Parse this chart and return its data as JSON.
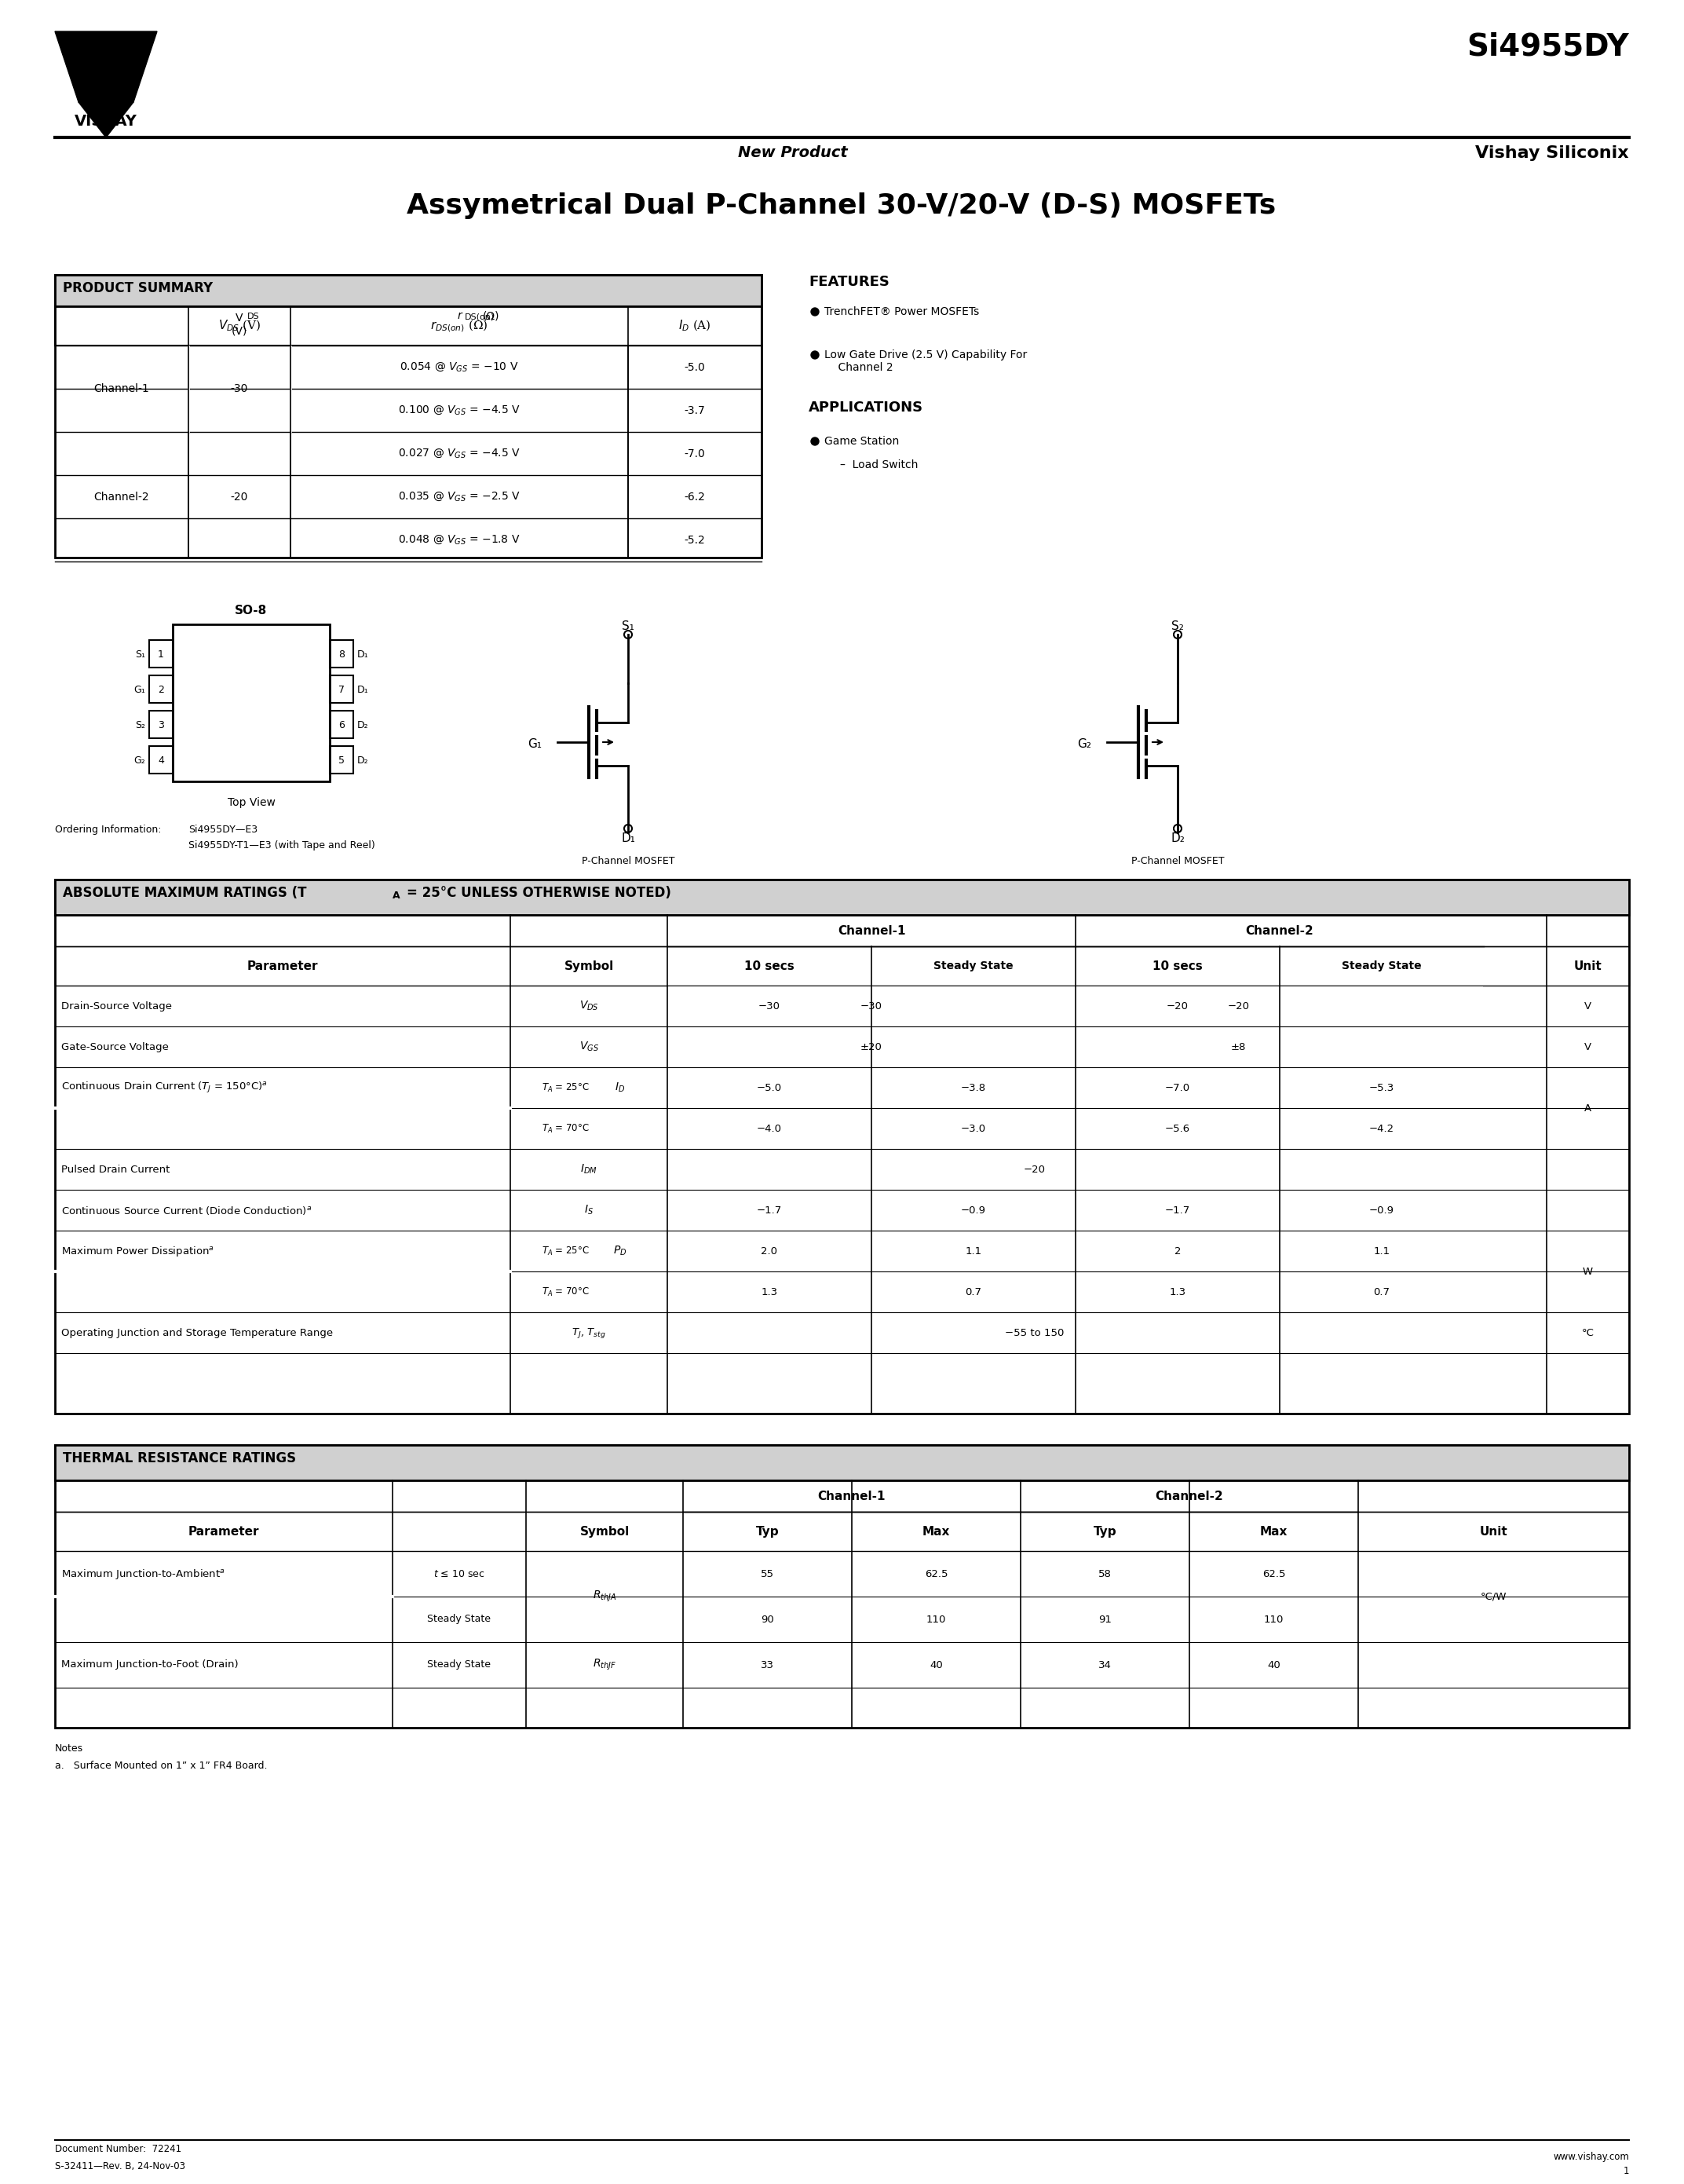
{
  "title": "Si4955DY",
  "subtitle": "Vishay Siliconix",
  "new_product": "New Product",
  "main_title": "Assymetrical Dual P-Channel 30-V/20-V (D-S) MOSFETs",
  "bg_color": "#ffffff",
  "text_color": "#000000",
  "page_number": "1",
  "doc_number": "Document Number:  72241",
  "doc_rev": "S-32411—Rev. B, 24-Nov-03",
  "website": "www.vishay.com",
  "product_summary_headers": [
    "",
    "V_DS (V)",
    "r_DS(on) (Ω)",
    "I_D (A)"
  ],
  "product_summary_rows": [
    [
      "Channel-1",
      "-30",
      "0.054 @ V_GS = –10 V",
      "-5.0"
    ],
    [
      "",
      "",
      "0.100 @ V_GS = –4.5 V",
      "-3.7"
    ],
    [
      "Channel-2",
      "-20",
      "0.027 @ V_GS = –4.5 V",
      "-7.0"
    ],
    [
      "",
      "",
      "0.035 @ V_GS = –2.5 V",
      "-6.2"
    ],
    [
      "",
      "",
      "0.048 @ V_GS = –1.8 V",
      "-5.2"
    ]
  ],
  "features_title": "FEATURES",
  "features": [
    "TrenchFET® Power MOSFETs",
    "Low Gate Drive (2.5 V) Capability For\n    Channel 2"
  ],
  "applications_title": "APPLICATIONS",
  "applications": [
    "Game Station\n  –  Load Switch"
  ],
  "abs_max_title": "ABSOLUTE MAXIMUM RATINGS (T_A = 25°C UNLESS OTHERWISE NOTED)",
  "abs_max_headers": [
    "Parameter",
    "Symbol",
    "10 secs",
    "Steady State",
    "10 secs",
    "Steady State",
    "Unit"
  ],
  "abs_max_channel_headers": [
    "Channel-1",
    "Channel-2"
  ],
  "abs_max_rows": [
    [
      "Drain-Source Voltage",
      "V_DS",
      "-30",
      "",
      "-20",
      "",
      "V"
    ],
    [
      "Gate-Source Voltage",
      "V_GS",
      "±20",
      "",
      "±8",
      "",
      "V"
    ],
    [
      "Continuous Drain Current (T_J = 150°C)^a",
      "T_A = 25°C",
      "I_D",
      "-5.0",
      "-3.8",
      "-7.0",
      "-5.3",
      "A"
    ],
    [
      "",
      "T_A = 70°C",
      "",
      "-4.0",
      "-3.0",
      "-5.6",
      "-4.2",
      "A"
    ],
    [
      "Pulsed Drain Current",
      "I_DM",
      "",
      "",
      "-20",
      "",
      "",
      "A"
    ],
    [
      "Continuous Source Current (Diode Conduction)^a",
      "I_S",
      "-1.7",
      "-0.9",
      "-1.7",
      "-0.9",
      "A"
    ],
    [
      "Maximum Power Dissipation^a",
      "T_A = 25°C",
      "P_D",
      "2.0",
      "1.1",
      "2",
      "1.1",
      "W"
    ],
    [
      "",
      "T_A = 70°C",
      "",
      "1.3",
      "0.7",
      "1.3",
      "0.7",
      "W"
    ],
    [
      "Operating Junction and Storage Temperature Range",
      "T_J, T_stg",
      "-55 to 150",
      "",
      "",
      "",
      "°C"
    ]
  ],
  "thermal_title": "THERMAL RESISTANCE RATINGS",
  "thermal_headers": [
    "Parameter",
    "Symbol",
    "Typ",
    "Max",
    "Typ",
    "Max",
    "Unit"
  ],
  "thermal_channel_headers": [
    "Channel-1",
    "Channel-2"
  ],
  "thermal_rows": [
    [
      "Maximum Junction-to-Ambient^a",
      "t ≤ 10 sec",
      "R_thJA",
      "55",
      "62.5",
      "58",
      "62.5",
      "°C/W"
    ],
    [
      "",
      "Steady State",
      "",
      "90",
      "110",
      "91",
      "110",
      "°C/W"
    ],
    [
      "Maximum Junction-to-Foot (Drain)",
      "Steady State",
      "R_thJF",
      "33",
      "40",
      "34",
      "40",
      "°C/W"
    ]
  ],
  "notes": [
    "Notes",
    "a.  Surface Mounted on 1” x 1” FR4 Board."
  ],
  "ordering_info": "Ordering Information:   Si4955DY—E3\n                                      Si4955DY-T1—E3 (with Tape and Reel)"
}
